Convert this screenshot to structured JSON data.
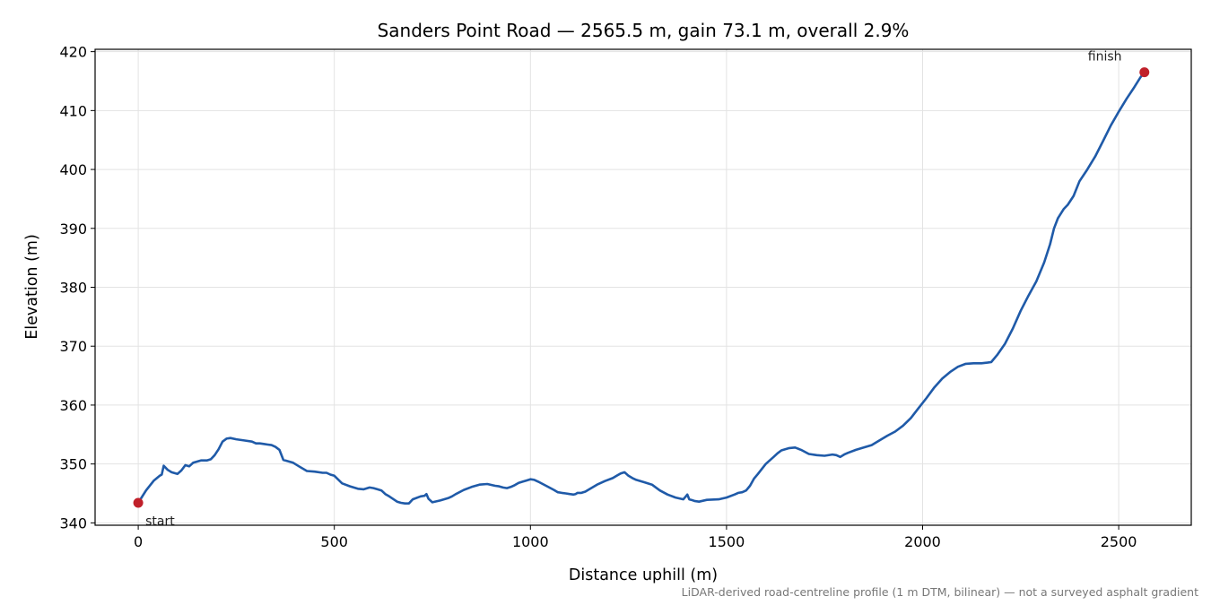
{
  "chart_data": {
    "type": "line",
    "title": "Sanders Point Road — 2565.5 m, gain 73.1 m, overall 2.9%",
    "xlabel": "Distance uphill (m)",
    "ylabel": "Elevation (m)",
    "xlim": [
      -110,
      2685
    ],
    "ylim": [
      339.6,
      420.4
    ],
    "xticks": [
      0,
      500,
      1000,
      1500,
      2000,
      2500
    ],
    "yticks": [
      340,
      350,
      360,
      370,
      380,
      390,
      400,
      410,
      420
    ],
    "grid": true,
    "line_color": "#1f5aa8",
    "marker_color": "#c0202a",
    "series": [
      {
        "x": [
          0,
          20,
          40,
          55,
          60,
          65,
          75,
          85,
          100,
          110,
          120,
          130,
          140,
          160,
          175,
          185,
          195,
          205,
          215,
          225,
          235,
          250,
          270,
          290,
          300,
          310,
          320,
          330,
          340,
          350,
          360,
          370,
          380,
          395,
          410,
          430,
          450,
          470,
          480,
          490,
          500,
          520,
          540,
          560,
          575,
          590,
          600,
          610,
          620,
          630,
          640,
          660,
          670,
          680,
          690,
          700,
          720,
          730,
          735,
          740,
          750,
          770,
          790,
          800,
          810,
          830,
          850,
          870,
          890,
          910,
          920,
          930,
          940,
          950,
          960,
          970,
          980,
          990,
          1000,
          1010,
          1020,
          1040,
          1060,
          1070,
          1080,
          1090,
          1100,
          1110,
          1115,
          1120,
          1130,
          1140,
          1150,
          1170,
          1190,
          1210,
          1220,
          1230,
          1240,
          1245,
          1250,
          1260,
          1270,
          1290,
          1310,
          1330,
          1350,
          1370,
          1390,
          1400,
          1405,
          1410,
          1420,
          1430,
          1450,
          1480,
          1500,
          1520,
          1530,
          1540,
          1550,
          1560,
          1570,
          1580,
          1600,
          1620,
          1630,
          1640,
          1660,
          1675,
          1690,
          1710,
          1730,
          1750,
          1770,
          1780,
          1790,
          1800,
          1810,
          1830,
          1850,
          1870,
          1890,
          1910,
          1930,
          1950,
          1970,
          1990,
          2010,
          2030,
          2050,
          2070,
          2090,
          2110,
          2130,
          2150,
          2165,
          2175,
          2190,
          2210,
          2230,
          2250,
          2270,
          2290,
          2310,
          2325,
          2335,
          2345,
          2360,
          2370,
          2385,
          2400,
          2420,
          2440,
          2460,
          2480,
          2500,
          2520,
          2540,
          2555,
          2565.5
        ],
        "y": [
          343.4,
          345.5,
          347.2,
          348.0,
          348.2,
          349.7,
          349.0,
          348.6,
          348.3,
          348.9,
          349.8,
          349.6,
          350.2,
          350.6,
          350.6,
          350.8,
          351.5,
          352.5,
          353.8,
          354.3,
          354.4,
          354.2,
          354.0,
          353.8,
          353.5,
          353.5,
          353.4,
          353.3,
          353.2,
          352.9,
          352.4,
          350.7,
          350.5,
          350.2,
          349.6,
          348.8,
          348.7,
          348.5,
          348.5,
          348.2,
          348.0,
          346.7,
          346.2,
          345.8,
          345.7,
          346.0,
          345.9,
          345.7,
          345.5,
          344.9,
          344.5,
          343.6,
          343.4,
          343.3,
          343.3,
          344.0,
          344.5,
          344.6,
          344.9,
          344.1,
          343.5,
          343.8,
          344.2,
          344.5,
          344.9,
          345.6,
          346.1,
          346.5,
          346.6,
          346.3,
          346.2,
          346.0,
          345.9,
          346.1,
          346.4,
          346.8,
          347.0,
          347.2,
          347.4,
          347.3,
          347.0,
          346.3,
          345.6,
          345.2,
          345.1,
          345.0,
          344.9,
          344.8,
          344.9,
          345.1,
          345.1,
          345.3,
          345.7,
          346.5,
          347.1,
          347.6,
          348.0,
          348.4,
          348.6,
          348.3,
          348.0,
          347.6,
          347.3,
          346.9,
          346.5,
          345.5,
          344.8,
          344.3,
          344.0,
          344.8,
          344.0,
          343.9,
          343.7,
          343.6,
          343.9,
          344.0,
          344.3,
          344.8,
          345.1,
          345.2,
          345.5,
          346.3,
          347.5,
          348.3,
          350.0,
          351.2,
          351.8,
          352.3,
          352.7,
          352.8,
          352.4,
          351.7,
          351.5,
          351.4,
          351.6,
          351.5,
          351.2,
          351.6,
          351.9,
          352.4,
          352.8,
          353.2,
          354.0,
          354.8,
          355.5,
          356.5,
          357.8,
          359.5,
          361.2,
          363.0,
          364.5,
          365.6,
          366.5,
          367.0,
          367.1,
          367.1,
          367.2,
          367.3,
          368.5,
          370.4,
          373.0,
          376.0,
          378.6,
          381.0,
          384.2,
          387.3,
          390.0,
          391.7,
          393.3,
          394.0,
          395.5,
          398.0,
          400.0,
          402.2,
          404.8,
          407.5,
          409.8,
          412.0,
          414.0,
          415.6,
          416.5
        ]
      }
    ],
    "annotations": [
      {
        "text": "start",
        "x": 0,
        "y": 343.4
      },
      {
        "text": "finish",
        "x": 2565.5,
        "y": 416.5
      }
    ],
    "footnote": "LiDAR-derived road-centreline profile (1 m DTM, bilinear) — not a surveyed asphalt gradient"
  }
}
